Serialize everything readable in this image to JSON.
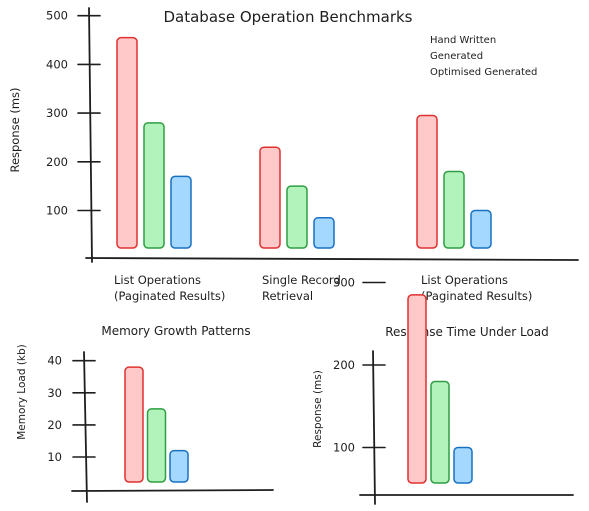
{
  "colors": {
    "hand_written": {
      "fill": "#ffc9c9",
      "stroke": "#e03131"
    },
    "generated": {
      "fill": "#b2f2bb",
      "stroke": "#2f9e44"
    },
    "optimised_generated": {
      "fill": "#a5d8ff",
      "stroke": "#1971c2"
    },
    "legend_hand_written": "#e03131",
    "legend_generated": "#2f9e44",
    "legend_optimised": "#1971c2"
  },
  "chart_data": [
    {
      "type": "bar",
      "title": "Database Operation Benchmarks",
      "ylabel": "Response (ms)",
      "xlabel": "",
      "ylim": [
        0,
        500
      ],
      "yticks": [
        100,
        200,
        300,
        400,
        500
      ],
      "legend_placement": "top-right",
      "grid": false,
      "categories": [
        [
          "List Operations",
          "(Paginated Results)"
        ],
        [
          "Single Record",
          "Retrieval"
        ],
        [
          "List Operations",
          "(Paginated Results)"
        ]
      ],
      "series": [
        {
          "name": "Hand Written",
          "values": [
            455,
            230,
            295
          ]
        },
        {
          "name": "Generated",
          "values": [
            280,
            150,
            180
          ]
        },
        {
          "name": "Optimised Generated",
          "values": [
            170,
            85,
            100
          ]
        }
      ]
    },
    {
      "type": "bar",
      "title": "Memory Growth Patterns",
      "ylabel": "Memory Load (kb)",
      "xlabel": "",
      "ylim": [
        0,
        45
      ],
      "yticks": [
        10,
        20,
        30,
        40
      ],
      "grid": false,
      "values": [
        38,
        25,
        12
      ]
    },
    {
      "type": "bar",
      "title": "Response Time Under Load",
      "ylabel": "Response (ms)",
      "xlabel": "",
      "ylim": [
        0,
        340
      ],
      "yticks": [
        100,
        200,
        300
      ],
      "grid": false,
      "values": [
        285,
        180,
        100
      ]
    }
  ]
}
